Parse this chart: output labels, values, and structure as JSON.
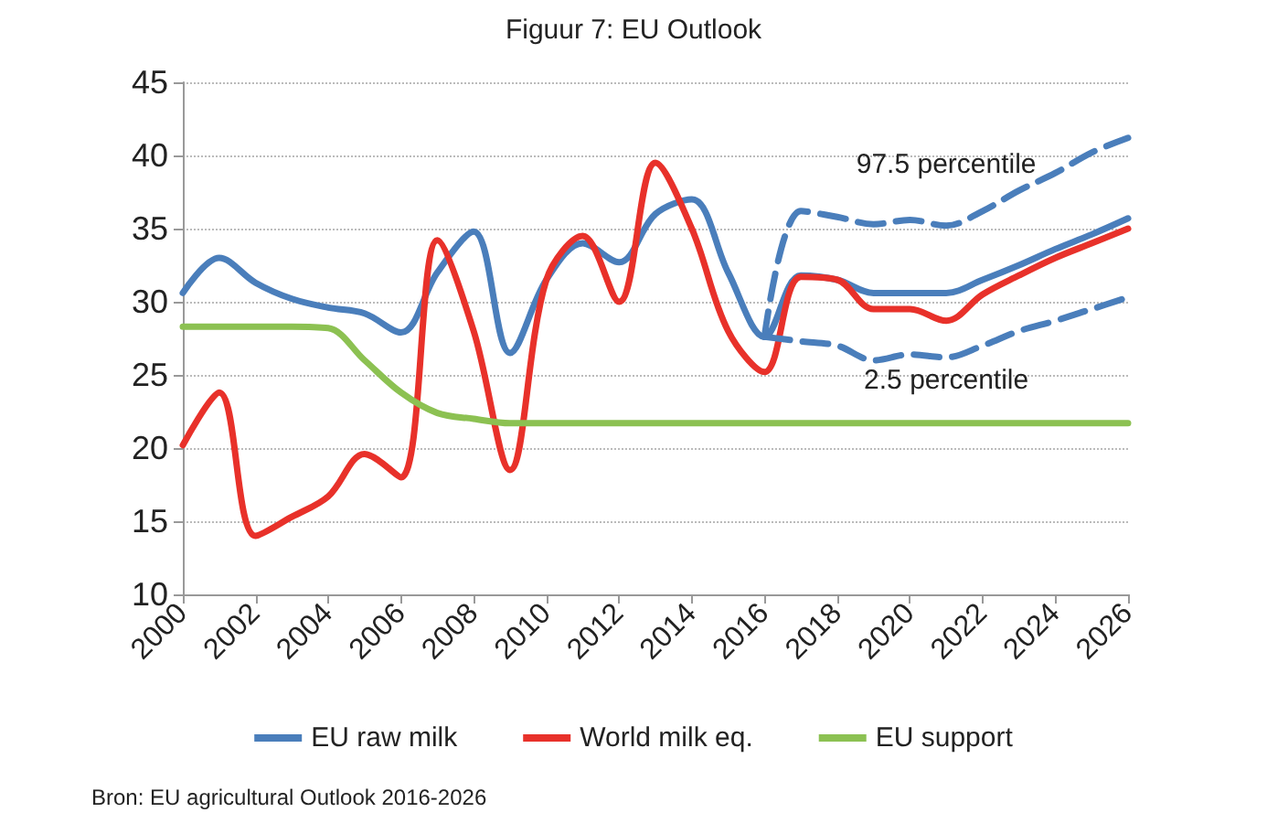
{
  "chart_data": {
    "type": "line",
    "title": "Figuur 7: EU Outlook",
    "x": [
      2000,
      2001,
      2002,
      2003,
      2004,
      2005,
      2006,
      2007,
      2008,
      2009,
      2010,
      2011,
      2012,
      2013,
      2014,
      2015,
      2016,
      2017,
      2018,
      2019,
      2020,
      2021,
      2022,
      2023,
      2024,
      2025,
      2026
    ],
    "series": [
      {
        "name": "EU raw milk",
        "color": "#4a7ebb",
        "values": [
          30.6,
          33,
          31.3,
          30.2,
          29.6,
          29.2,
          27.9,
          32,
          34.8,
          26.5,
          31.5,
          34,
          32.7,
          36,
          37,
          32,
          27.6,
          31.8,
          31.5,
          30.6,
          30.6,
          30.6,
          31.5,
          32.5,
          33.6,
          34.6,
          35.7
        ]
      },
      {
        "name": "World milk eq.",
        "color": "#e8312a",
        "values": [
          20.2,
          23.8,
          14,
          15.3,
          16.7,
          19.6,
          18,
          34.2,
          28,
          18.5,
          31.5,
          34.5,
          30,
          39.5,
          35,
          28,
          25.2,
          31.7,
          31.5,
          29.5,
          29.5,
          28.7,
          30.5,
          31.8,
          33,
          34,
          35
        ]
      },
      {
        "name": "EU support",
        "color": "#8cc152",
        "values": [
          28.3,
          28.3,
          28.3,
          28.3,
          28.2,
          26,
          23.8,
          22.4,
          22,
          21.7,
          21.7,
          21.7,
          21.7,
          21.7,
          21.7,
          21.7,
          21.7,
          21.7,
          21.7,
          21.7,
          21.7,
          21.7,
          21.7,
          21.7,
          21.7,
          21.7,
          21.7
        ]
      },
      {
        "name": "97.5 percentile",
        "color": "#4a7ebb",
        "line_style": "dashed",
        "x": [
          2016,
          2017,
          2018,
          2019,
          2020,
          2021,
          2022,
          2023,
          2024,
          2025,
          2026
        ],
        "values": [
          27.6,
          36.2,
          35.8,
          35.3,
          35.6,
          35.2,
          36.2,
          37.6,
          38.8,
          40.2,
          41.2
        ]
      },
      {
        "name": "2.5 percentile",
        "color": "#4a7ebb",
        "line_style": "dashed",
        "x": [
          2016,
          2017,
          2018,
          2019,
          2020,
          2021,
          2022,
          2023,
          2024,
          2025,
          2026
        ],
        "values": [
          27.6,
          27.3,
          27,
          26,
          26.4,
          26.2,
          27,
          28,
          28.7,
          29.5,
          30.3
        ]
      }
    ],
    "xlim": [
      2000,
      2026
    ],
    "xticks": [
      2000,
      2002,
      2004,
      2006,
      2008,
      2010,
      2012,
      2014,
      2016,
      2018,
      2020,
      2022,
      2024,
      2026
    ],
    "ylim": [
      10,
      45
    ],
    "yticks": [
      10,
      15,
      20,
      25,
      30,
      35,
      40,
      45
    ],
    "grid": "y",
    "legend": "bottom",
    "marker": "none",
    "line_style": "solid",
    "annotations": [
      "Bron: EU agricultural Outlook 2016-2026"
    ]
  }
}
